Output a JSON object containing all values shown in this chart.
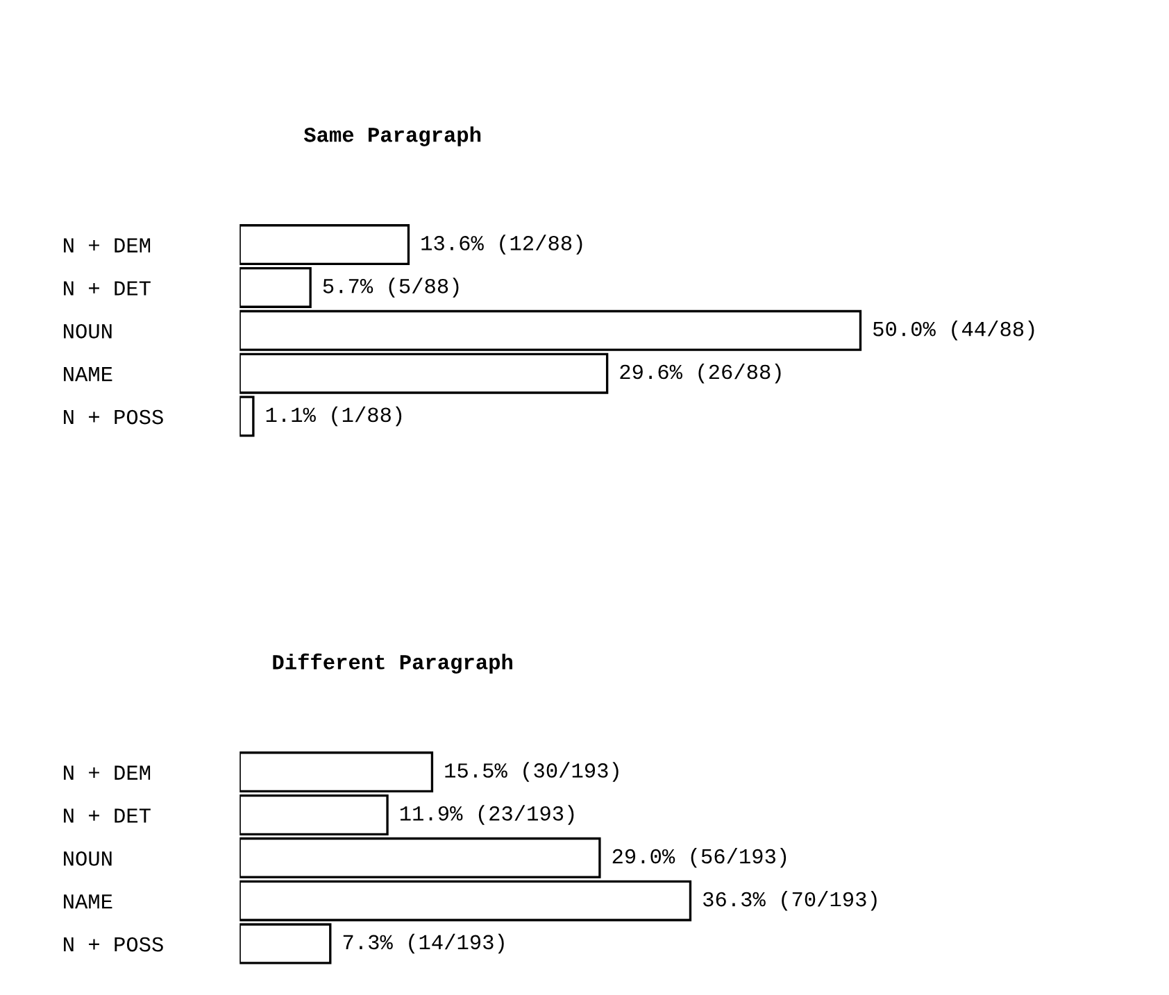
{
  "chart_data": [
    {
      "type": "bar",
      "orientation": "horizontal",
      "title": "Same Paragraph",
      "categories": [
        "N + DEM",
        "N + DET",
        "NOUN",
        "NAME",
        "N + POSS"
      ],
      "values": [
        13.6,
        5.7,
        50.0,
        29.6,
        1.1
      ],
      "color": "#000000",
      "value_labels": [
        "13.6% (12/88)",
        "5.7% (5/88)",
        "50.0% (44/88)",
        "29.6% (26/88)",
        "1.1% (1/88)"
      ],
      "tick_labels": "y"
    },
    {
      "type": "bar",
      "orientation": "horizontal",
      "title": "Different Paragraph",
      "categories": [
        "N + DEM",
        "N + DET",
        "NOUN",
        "NAME",
        "N + POSS"
      ],
      "values": [
        15.5,
        11.9,
        29.0,
        36.3,
        7.3
      ],
      "color": "#000000",
      "value_labels": [
        "15.5% (30/193)",
        "11.9% (23/193)",
        "29.0% (56/193)",
        "36.3% (70/193)",
        "7.3% (14/193)"
      ],
      "tick_labels": "y"
    }
  ]
}
